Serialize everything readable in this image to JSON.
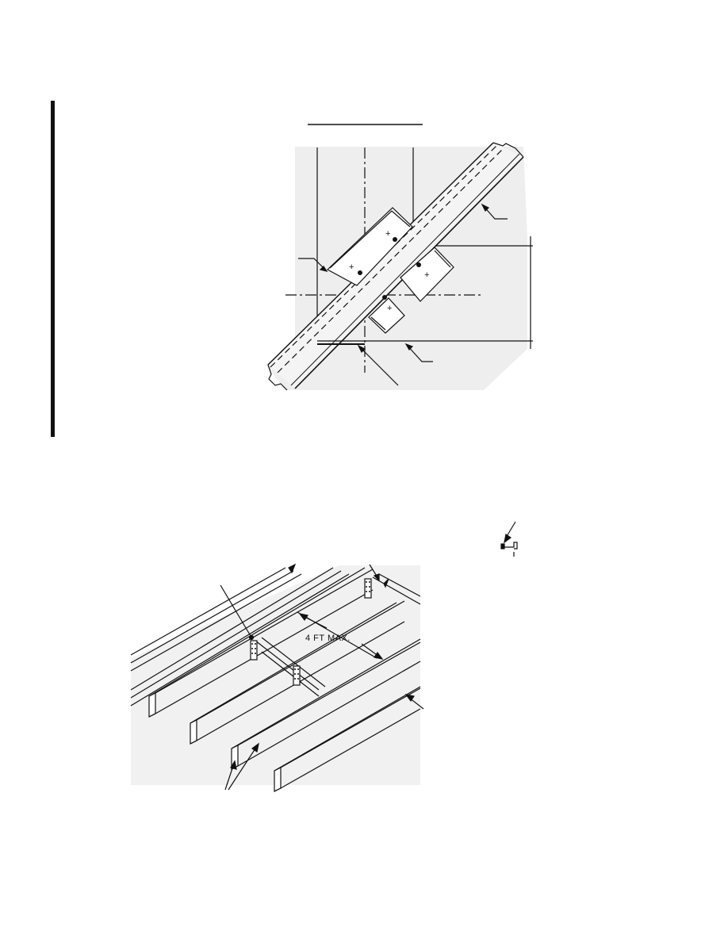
{
  "top_detail": {
    "title_underline": true
  },
  "bottom_detail": {
    "spacing_label": "4 FT  MAX."
  },
  "colors": {
    "ink": "#111111",
    "paper": "#ffffff",
    "shade": "#e6e6e6"
  }
}
